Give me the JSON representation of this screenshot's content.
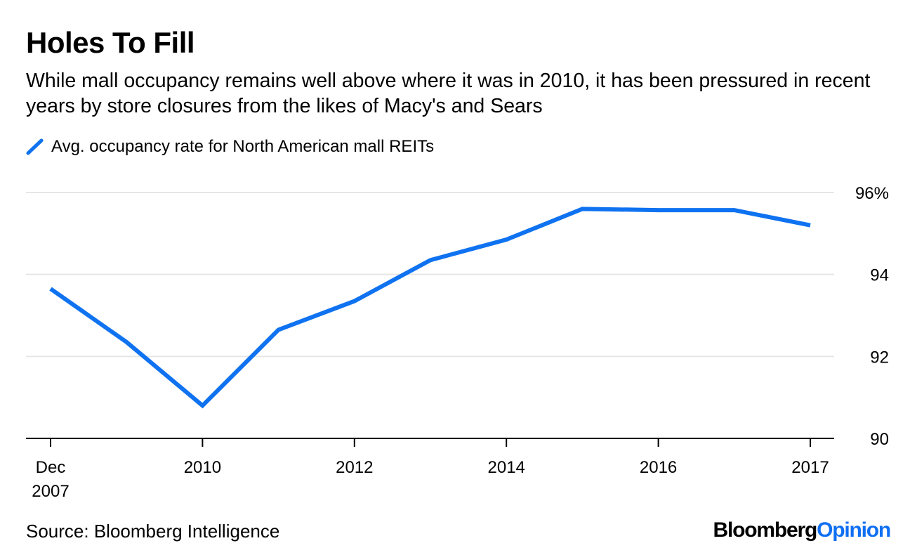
{
  "header": {
    "title": "Holes To Fill",
    "subtitle": "While mall occupancy remains well above where it was in 2010, it has been pressured in recent years by store closures from the likes of Macy's and Sears"
  },
  "footer": {
    "source": "Source: Bloomberg Intelligence",
    "brand_part1": "Bloomberg",
    "brand_part2": "Opinion"
  },
  "colors": {
    "series": "#0f72f0",
    "brand_accent": "#0f6ff2",
    "grid": "#e6e6e6",
    "axis": "#000000"
  },
  "chart_data": {
    "type": "line",
    "title": "Holes To Fill",
    "legend": "Avg. occupancy rate for North American mall REITs",
    "x": [
      2007.917,
      2008.917,
      2009.917,
      2010.917,
      2011.917,
      2012.917,
      2013.917,
      2014.917,
      2015.917,
      2016.917,
      2017.917
    ],
    "series": [
      {
        "name": "Avg. occupancy rate for North American mall REITs",
        "values": [
          93.65,
          92.35,
          90.8,
          92.65,
          93.35,
          94.35,
          94.85,
          95.6,
          95.57,
          95.57,
          95.2
        ]
      }
    ],
    "xlim": [
      2007.917,
      2017.917
    ],
    "ylim": [
      90,
      96
    ],
    "y_ticks": [
      90,
      92,
      94,
      96
    ],
    "y_tick_labels": [
      "90",
      "92",
      "94",
      "96%"
    ],
    "x_ticks": [
      {
        "x": 2007.917,
        "line1": "Dec",
        "line2": "2007"
      },
      {
        "x": 2009.917,
        "line1": "2010",
        "line2": ""
      },
      {
        "x": 2011.917,
        "line1": "2012",
        "line2": ""
      },
      {
        "x": 2013.917,
        "line1": "2014",
        "line2": ""
      },
      {
        "x": 2015.917,
        "line1": "2016",
        "line2": ""
      },
      {
        "x": 2017.917,
        "line1": "2017",
        "line2": ""
      }
    ],
    "xlabel": "",
    "ylabel": "",
    "grid": true,
    "y_axis_side": "right",
    "legend_position": "top-left"
  }
}
